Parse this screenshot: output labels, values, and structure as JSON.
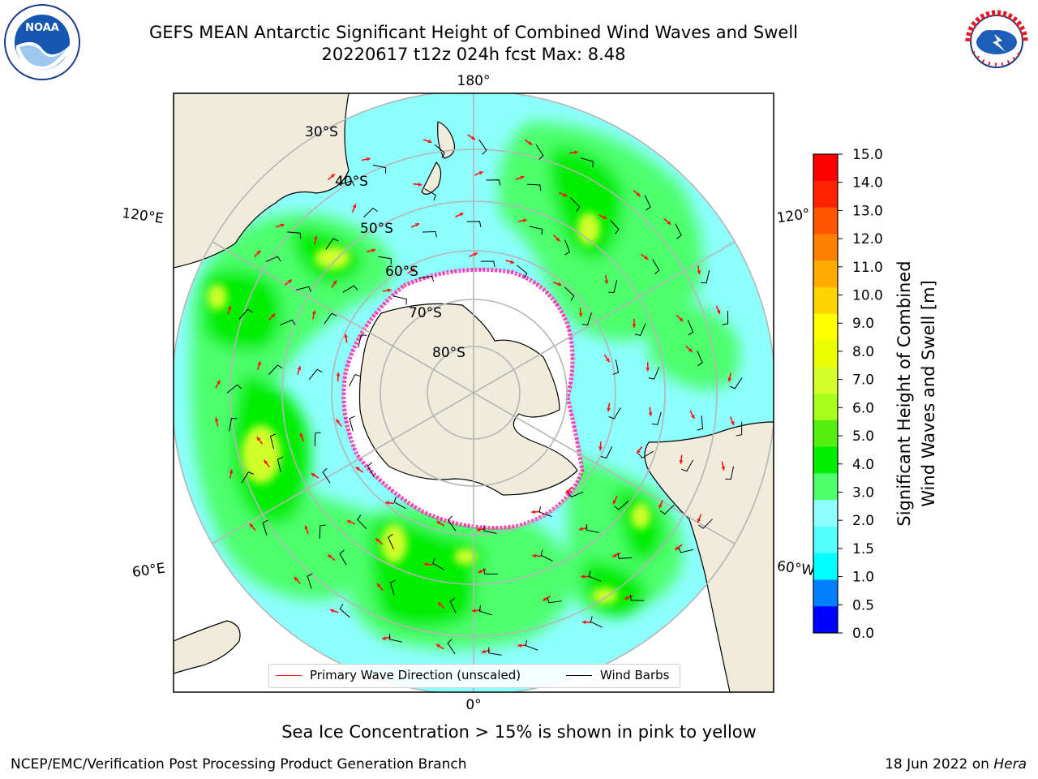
{
  "header": {
    "title_line1": "GEFS MEAN Antarctic Significant Height of Combined Wind Waves and Swell",
    "title_line2": "20220617 t12z 024h fcst   Max: 8.48"
  },
  "map": {
    "projection": "south-polar-stereographic",
    "lon_labels": {
      "top": "180°",
      "bottom": "0°",
      "left_upper": "120°E",
      "left_lower": "60°E",
      "right_upper": "120°",
      "right_lower": "60°W"
    },
    "lat_labels": [
      "30°S",
      "40°S",
      "50°S",
      "60°S",
      "70°S",
      "80°S"
    ],
    "colors": {
      "land": "#efecdc",
      "ocean_low": "#8dfffd",
      "ocean_mid": "#4dff6d",
      "ocean_high": "#00ee00",
      "peak": "#d0ff29",
      "ice": "#ffffff",
      "ice_edge": "#ff33dd",
      "arrow": "#ff1111",
      "barb": "#000000",
      "grid": "#b5b5b5"
    }
  },
  "colorbar": {
    "label_line1": "Significant Height of Combined",
    "label_line2": "Wind Waves and Swell [m]",
    "ticks": [
      "15.0",
      "14.0",
      "13.0",
      "12.0",
      "11.0",
      "10.0",
      "9.0",
      "8.0",
      "7.0",
      "6.0",
      "5.0",
      "4.0",
      "3.0",
      "2.0",
      "1.5",
      "1.0",
      "0.5",
      "0.0"
    ],
    "colors": [
      "#ff0000",
      "#ff2200",
      "#ff5500",
      "#ff8000",
      "#ffaa00",
      "#ffd300",
      "#ffff00",
      "#eaff00",
      "#d4ff29",
      "#a6ff1a",
      "#55ee11",
      "#00ee00",
      "#4dff6d",
      "#8dfffd",
      "#55ffff",
      "#00ffff",
      "#0080ff",
      "#0000ff"
    ]
  },
  "legend": {
    "wave_label": "Primary Wave Direction (unscaled)",
    "wind_label": "Wind Barbs"
  },
  "footer": {
    "note": "Sea Ice Concentration > 15% is shown in pink to yellow",
    "credit": "NCEP/EMC/Verification Post Processing Product Generation Branch",
    "date": "18 Jun 2022 on ",
    "machine": "Hera"
  },
  "logos": {
    "left": "NOAA",
    "right": "NATIONAL WEATHER SERVICE"
  }
}
